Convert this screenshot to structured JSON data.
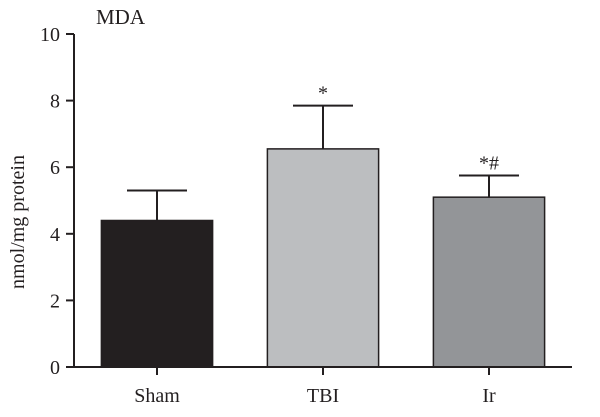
{
  "chart_data": {
    "type": "bar",
    "title": "MDA",
    "xlabel": "",
    "ylabel": "nmol/mg protein",
    "ylim": [
      0,
      10
    ],
    "yticks": [
      0,
      2,
      4,
      6,
      8,
      10
    ],
    "categories": [
      "Sham",
      "TBI",
      "Ir"
    ],
    "values": [
      4.4,
      6.55,
      5.1
    ],
    "errors": [
      0.9,
      1.3,
      0.65
    ],
    "annotations": [
      "",
      "*",
      "*#"
    ],
    "bar_colors": [
      "#231f20",
      "#bcbec0",
      "#939598"
    ],
    "grid": false
  }
}
